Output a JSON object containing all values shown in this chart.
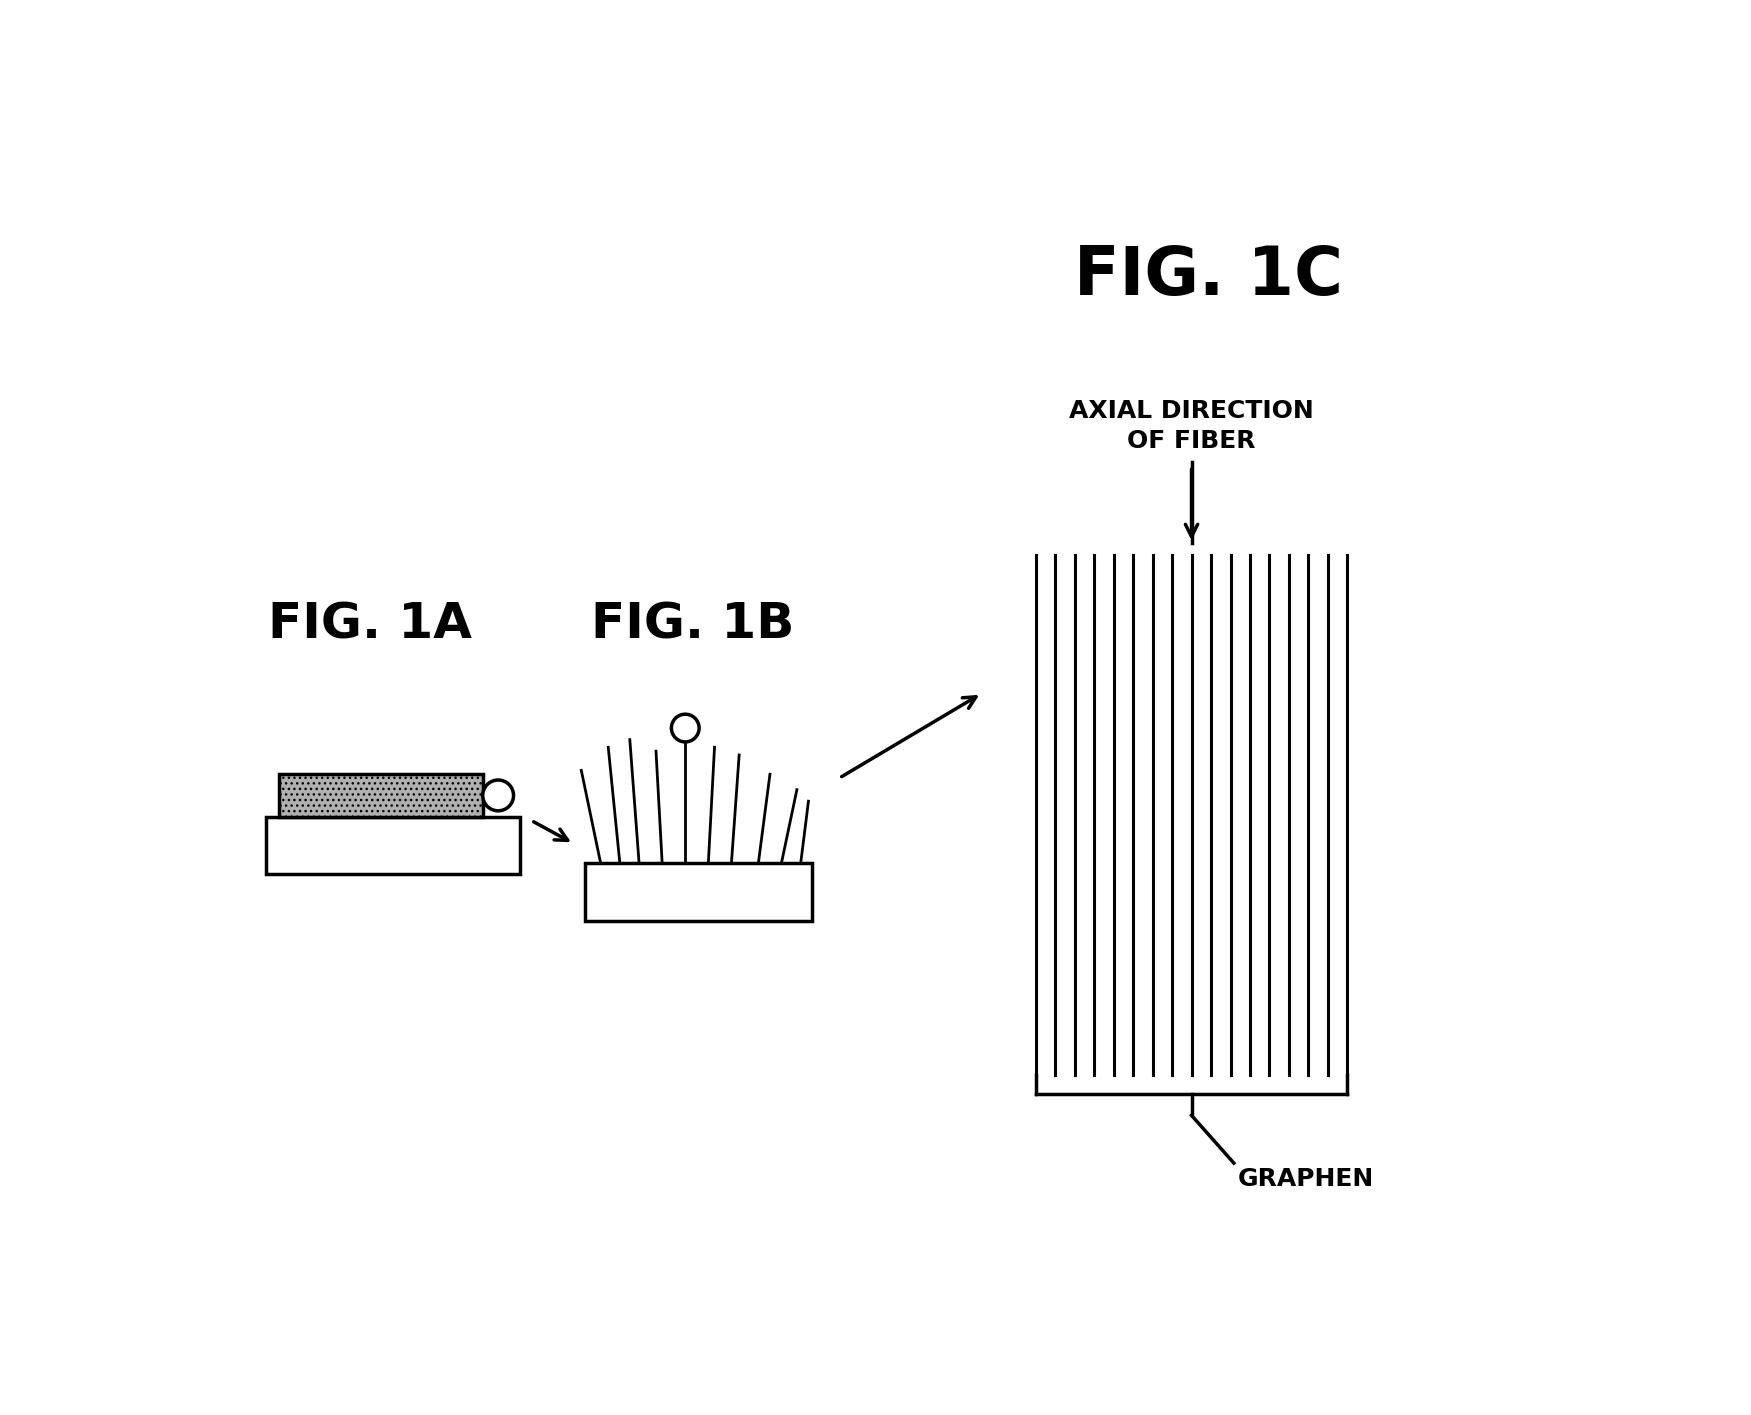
{
  "bg_color": "#ffffff",
  "title_1c": "FIG. 1C",
  "title_1a": "FIG. 1A",
  "title_1b": "FIG. 1B",
  "label_axial": "AXIAL DIRECTION\nOF FIBER",
  "label_graphen": "GRAPHEN",
  "fig_width": 17.51,
  "fig_height": 14.15,
  "title_1c_fontsize": 48,
  "subfig_fontsize": 36,
  "label_fontsize": 18,
  "graphen_fontsize": 18
}
